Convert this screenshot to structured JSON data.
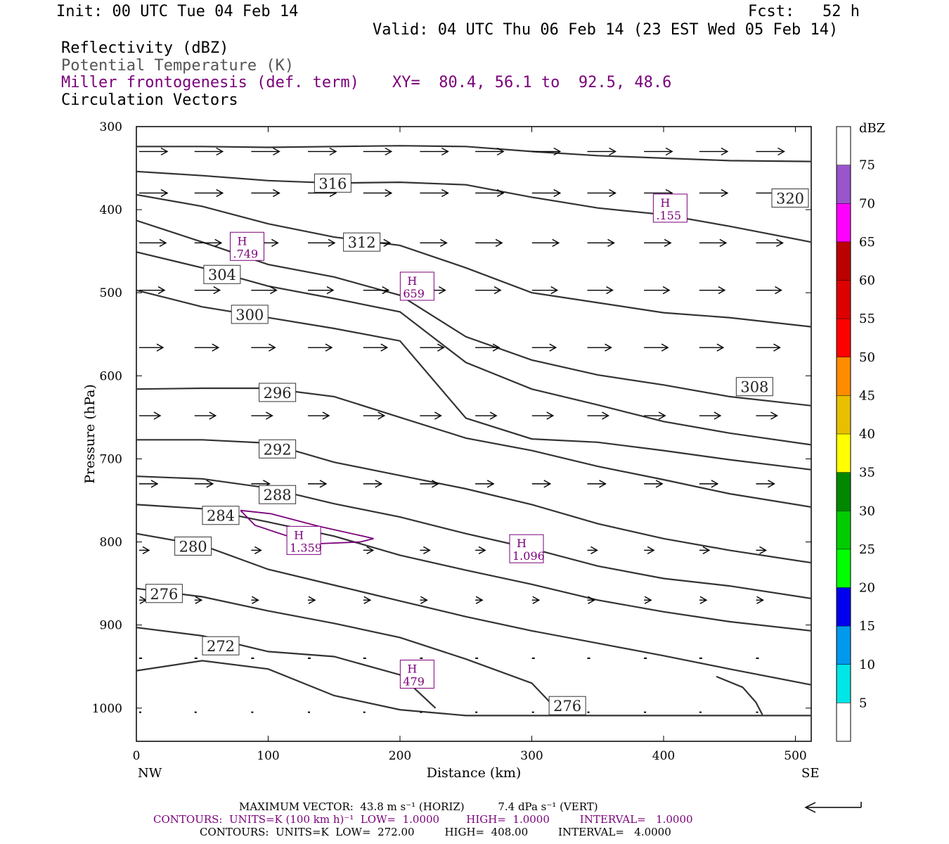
{
  "header": {
    "init": "Init: 00 UTC Tue 04 Feb 14",
    "fcst": "Fcst:   52 h",
    "valid": "Valid: 04 UTC Thu 06 Feb 14 (23 EST Wed 05 Feb 14)",
    "field1": "Reflectivity (dBZ)",
    "field2": "Potential Temperature (K)",
    "field3": "Miller frontogenesis (def. term)",
    "xy": "XY=  80.4, 56.1 to  92.5, 48.6",
    "field4": "Circulation Vectors"
  },
  "colors": {
    "theta_line": "#333333",
    "fronto": "#7a007a",
    "vector": "#000000"
  },
  "footer": {
    "max_vector_line": "MAXIMUM VECTOR:  43.8 m s⁻¹ (HORIZ)          7.4 dPa s⁻¹ (VERT)",
    "contours_purple": "CONTOURS:  UNITS=K (100 km h)⁻¹  LOW=  1.0000        HIGH=  1.0000         INTERVAL=   1.0000",
    "contours_black": "CONTOURS:  UNITS=K  LOW=  272.00         HIGH=  408.00         INTERVAL=   4.0000"
  },
  "chart_data": {
    "type": "line",
    "title": "",
    "xlabel": "Distance (km)",
    "ylabel": "Pressure (hPa)",
    "xlim": [
      0,
      512
    ],
    "ylim": [
      1040,
      300
    ],
    "xticks": [
      0,
      100,
      200,
      300,
      400,
      500
    ],
    "yticks": [
      300,
      400,
      500,
      600,
      700,
      800,
      900,
      1000
    ],
    "x_endpoints": [
      "NW",
      "SE"
    ],
    "colorbar": {
      "unit": "dBZ",
      "ticks": [
        5,
        10,
        15,
        20,
        25,
        30,
        35,
        40,
        45,
        50,
        55,
        60,
        65,
        70,
        75
      ],
      "colors": [
        "#ffffff",
        "#00e6e6",
        "#0099ee",
        "#0000ee",
        "#00ff00",
        "#00cc00",
        "#008800",
        "#ffff00",
        "#e8c000",
        "#ff8c00",
        "#ff0000",
        "#dd0000",
        "#bb0000",
        "#ff00ff",
        "#9955cc",
        "#ffffff"
      ]
    },
    "theta_contours": [
      {
        "value": 320,
        "label": "320",
        "label_at": [
          496,
          386
        ],
        "points": [
          [
            0,
            324
          ],
          [
            50,
            324
          ],
          [
            100,
            325
          ],
          [
            150,
            324
          ],
          [
            200,
            323
          ],
          [
            250,
            324
          ],
          [
            300,
            330
          ],
          [
            350,
            335
          ],
          [
            400,
            338
          ],
          [
            450,
            341
          ],
          [
            512,
            342
          ]
        ]
      },
      {
        "value": 316,
        "label": "316",
        "label_at": [
          149,
          368
        ],
        "points": [
          [
            0,
            354
          ],
          [
            50,
            359
          ],
          [
            100,
            365
          ],
          [
            150,
            368
          ],
          [
            200,
            367
          ],
          [
            250,
            370
          ],
          [
            300,
            385
          ],
          [
            350,
            398
          ],
          [
            400,
            406
          ],
          [
            450,
            420
          ],
          [
            512,
            439
          ]
        ]
      },
      {
        "value": 312,
        "label": "312",
        "label_at": [
          171,
          439
        ],
        "points": [
          [
            0,
            382
          ],
          [
            50,
            396
          ],
          [
            100,
            417
          ],
          [
            150,
            433
          ],
          [
            200,
            443
          ],
          [
            250,
            470
          ],
          [
            300,
            500
          ],
          [
            350,
            512
          ],
          [
            400,
            524
          ],
          [
            450,
            530
          ],
          [
            512,
            541
          ]
        ]
      },
      {
        "value": 308,
        "label": "308",
        "label_at": [
          469,
          613
        ],
        "points": [
          [
            0,
            413
          ],
          [
            50,
            439
          ],
          [
            100,
            466
          ],
          [
            150,
            481
          ],
          [
            200,
            503
          ],
          [
            250,
            553
          ],
          [
            300,
            581
          ],
          [
            350,
            599
          ],
          [
            400,
            611
          ],
          [
            450,
            625
          ],
          [
            512,
            636
          ]
        ]
      },
      {
        "value": 304,
        "label": "304",
        "label_at": [
          65,
          478
        ],
        "points": [
          [
            0,
            451
          ],
          [
            50,
            470
          ],
          [
            100,
            492
          ],
          [
            150,
            507
          ],
          [
            200,
            523
          ],
          [
            250,
            584
          ],
          [
            300,
            616
          ],
          [
            350,
            635
          ],
          [
            400,
            655
          ],
          [
            450,
            669
          ],
          [
            512,
            683
          ]
        ]
      },
      {
        "value": 300,
        "label": "300",
        "label_at": [
          86,
          526
        ],
        "points": [
          [
            0,
            497
          ],
          [
            50,
            517
          ],
          [
            100,
            530
          ],
          [
            150,
            543
          ],
          [
            200,
            558
          ],
          [
            250,
            651
          ],
          [
            300,
            676
          ],
          [
            350,
            680
          ],
          [
            400,
            690
          ],
          [
            450,
            701
          ],
          [
            512,
            713
          ]
        ]
      },
      {
        "value": 296,
        "label": "296",
        "label_at": [
          107,
          620
        ],
        "points": [
          [
            0,
            616
          ],
          [
            50,
            615
          ],
          [
            100,
            615
          ],
          [
            150,
            625
          ],
          [
            200,
            650
          ],
          [
            250,
            675
          ],
          [
            300,
            690
          ],
          [
            350,
            709
          ],
          [
            400,
            725
          ],
          [
            450,
            742
          ],
          [
            512,
            758
          ]
        ]
      },
      {
        "value": 292,
        "label": "292",
        "label_at": [
          107,
          688
        ],
        "points": [
          [
            0,
            677
          ],
          [
            50,
            677
          ],
          [
            100,
            681
          ],
          [
            150,
            704
          ],
          [
            200,
            720
          ],
          [
            250,
            736
          ],
          [
            300,
            755
          ],
          [
            350,
            778
          ],
          [
            400,
            796
          ],
          [
            450,
            810
          ],
          [
            512,
            825
          ]
        ]
      },
      {
        "value": 288,
        "label": "288",
        "label_at": [
          107,
          743
        ],
        "points": [
          [
            0,
            721
          ],
          [
            50,
            724
          ],
          [
            100,
            735
          ],
          [
            150,
            754
          ],
          [
            200,
            770
          ],
          [
            250,
            790
          ],
          [
            300,
            808
          ],
          [
            350,
            829
          ],
          [
            400,
            844
          ],
          [
            450,
            853
          ],
          [
            512,
            868
          ]
        ]
      },
      {
        "value": 284,
        "label": "284",
        "label_at": [
          64,
          768
        ],
        "points": [
          [
            0,
            755
          ],
          [
            50,
            760
          ],
          [
            100,
            776
          ],
          [
            150,
            793
          ],
          [
            200,
            816
          ],
          [
            250,
            834
          ],
          [
            300,
            851
          ],
          [
            350,
            870
          ],
          [
            400,
            884
          ],
          [
            450,
            896
          ],
          [
            512,
            907
          ]
        ]
      },
      {
        "value": 280,
        "label": "280",
        "label_at": [
          43,
          805
        ],
        "points": [
          [
            0,
            790
          ],
          [
            50,
            804
          ],
          [
            100,
            833
          ],
          [
            150,
            852
          ],
          [
            200,
            871
          ],
          [
            250,
            890
          ],
          [
            300,
            907
          ],
          [
            350,
            922
          ],
          [
            400,
            937
          ],
          [
            450,
            953
          ],
          [
            512,
            972
          ]
        ]
      },
      {
        "value": 276,
        "label": "276",
        "label_at": [
          21,
          862
        ],
        "points": [
          [
            0,
            856
          ],
          [
            50,
            866
          ],
          [
            100,
            883
          ],
          [
            150,
            898
          ],
          [
            200,
            915
          ],
          [
            250,
            941
          ],
          [
            300,
            970
          ],
          [
            318,
            1000
          ]
        ]
      },
      {
        "value": 276,
        "label": "276",
        "label_at": [
          327,
          997
        ],
        "points": [
          [
            0,
            955
          ],
          [
            50,
            943
          ],
          [
            100,
            953
          ],
          [
            150,
            985
          ],
          [
            200,
            1002
          ],
          [
            250,
            1009
          ],
          [
            300,
            1009
          ],
          [
            512,
            1009
          ]
        ]
      },
      {
        "value": 272,
        "label": "272",
        "label_at": [
          64,
          925
        ],
        "points": [
          [
            0,
            903
          ],
          [
            50,
            913
          ],
          [
            100,
            932
          ],
          [
            150,
            938
          ],
          [
            200,
            960
          ],
          [
            227,
            1000
          ]
        ]
      },
      {
        "value": 276,
        "label": "",
        "label_at": null,
        "points": [
          [
            440,
            962
          ],
          [
            460,
            975
          ],
          [
            470,
            993
          ],
          [
            475,
            1008
          ]
        ]
      }
    ],
    "frontogenesis_maxima": [
      {
        "label": "H",
        "value": ".749",
        "at": [
          84,
          445
        ]
      },
      {
        "label": "H",
        "value": "659",
        "at": [
          213,
          493
        ]
      },
      {
        "label": "H",
        "value": ".155",
        "at": [
          405,
          399
        ]
      },
      {
        "label": "H",
        "value": "1.359",
        "at": [
          127,
          799
        ]
      },
      {
        "label": "H",
        "value": "1.096",
        "at": [
          296,
          809
        ]
      },
      {
        "label": "H",
        "value": "479",
        "at": [
          213,
          960
        ]
      }
    ],
    "fronto_contour": [
      [
        79,
        762
      ],
      [
        102,
        766
      ],
      [
        138,
        781
      ],
      [
        172,
        793
      ],
      [
        180,
        796
      ],
      [
        170,
        800
      ],
      [
        140,
        802
      ],
      [
        115,
        793
      ],
      [
        90,
        780
      ],
      [
        79,
        762
      ]
    ],
    "circulation_vectors": [
      {
        "p": 330,
        "xs": [
          0,
          42,
          85,
          128,
          170,
          213,
          255,
          298,
          340,
          383,
          425,
          468
        ],
        "len": 40
      },
      {
        "p": 380,
        "xs": [
          0,
          42,
          85,
          128,
          170,
          213,
          255,
          298,
          340,
          383,
          425,
          468
        ],
        "len": 40
      },
      {
        "p": 440,
        "xs": [
          0,
          42,
          85,
          128,
          170,
          213,
          255,
          298,
          340,
          383,
          425,
          468
        ],
        "len": 38
      },
      {
        "p": 497,
        "xs": [
          0,
          42,
          85,
          128,
          170,
          213,
          255,
          298,
          340,
          383,
          425,
          468
        ],
        "len": 36
      },
      {
        "p": 566,
        "xs": [
          0,
          42,
          85,
          128,
          170,
          213,
          255,
          298,
          340,
          383,
          425,
          468
        ],
        "len": 34
      },
      {
        "p": 648,
        "xs": [
          0,
          42,
          85,
          128,
          170,
          213,
          255,
          298,
          340,
          383,
          425,
          468
        ],
        "len": 30
      },
      {
        "p": 730,
        "xs": [
          0,
          42,
          85,
          128,
          170,
          213,
          255,
          298,
          340,
          383,
          425,
          468
        ],
        "len": 26
      },
      {
        "p": 810,
        "xs": [
          0,
          42,
          85,
          128,
          170,
          213,
          255,
          298,
          340,
          383,
          425,
          468
        ],
        "len": 14
      },
      {
        "p": 870,
        "xs": [
          0,
          42,
          85,
          128,
          170,
          213,
          255,
          298,
          340,
          383,
          425,
          468
        ],
        "len": 10
      },
      {
        "p": 940,
        "xs": [
          0,
          42,
          85,
          128,
          170,
          213,
          255,
          298,
          340,
          383,
          425,
          468
        ],
        "len": 8
      },
      {
        "p": 1005,
        "xs": [
          0,
          42,
          85,
          128,
          170,
          213,
          255,
          298,
          340,
          383,
          425,
          468
        ],
        "len": 6
      }
    ]
  }
}
